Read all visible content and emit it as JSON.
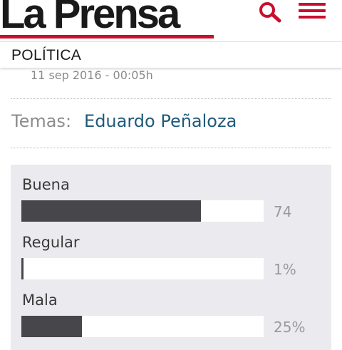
{
  "header": {
    "logo_text": "La Prensa",
    "search_icon": "search-icon",
    "menu_icon": "hamburger-menu-icon",
    "brand_color": "#c8102e"
  },
  "section": {
    "label": "POLÍTICA"
  },
  "article": {
    "date": "11 sep 2016 - 00:05h"
  },
  "topics": {
    "label": "Temas:",
    "link": "Eduardo Peñaloza"
  },
  "poll": {
    "options": [
      {
        "label": "Buena",
        "value_text": "74",
        "fraction": 0.74
      },
      {
        "label": "Regular",
        "value_text": "1%",
        "fraction": 0.01
      },
      {
        "label": "Mala",
        "value_text": "25%",
        "fraction": 0.25
      }
    ]
  }
}
